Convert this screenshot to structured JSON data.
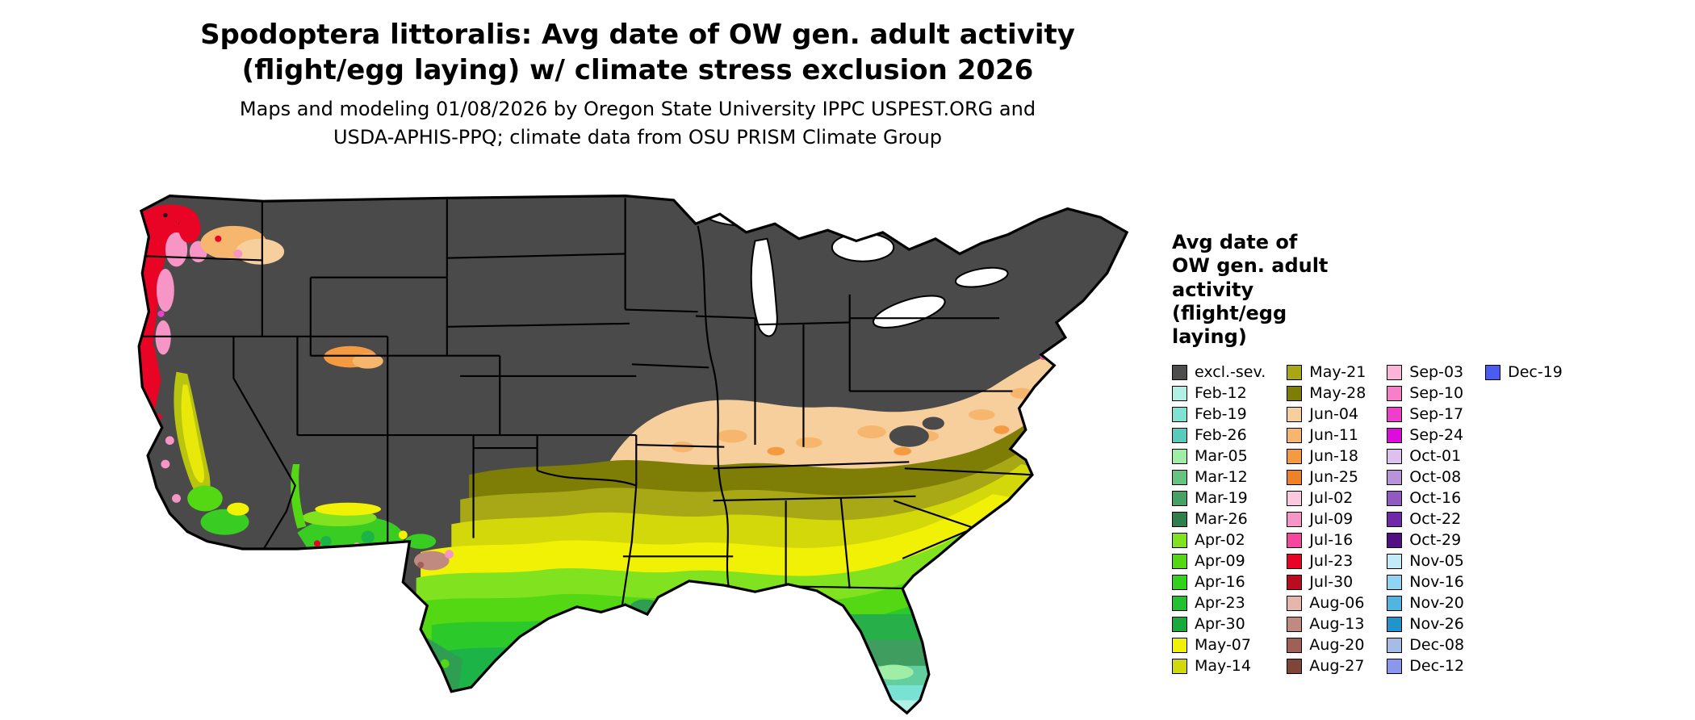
{
  "title": {
    "lines": [
      "Spodoptera littoralis: Avg date of OW gen. adult activity",
      "(flight/egg laying) w/ climate stress exclusion 2026"
    ]
  },
  "subtitle": {
    "lines": [
      "Maps and modeling 01/08/2026 by Oregon State University IPPC USPEST.ORG and",
      "USDA-APHIS-PPQ; climate data from OSU PRISM Climate Group"
    ]
  },
  "legend": {
    "title_lines": [
      "Avg date of",
      "OW gen. adult",
      "activity",
      "(flight/egg",
      "laying)"
    ],
    "columns": [
      [
        {
          "label": "excl.-sev.",
          "color": "#4d4d4d"
        },
        {
          "label": "Feb-12",
          "color": "#b2f0e6"
        },
        {
          "label": "Feb-19",
          "color": "#7fe3d2"
        },
        {
          "label": "Feb-26",
          "color": "#59cbbd"
        },
        {
          "label": "Mar-05",
          "color": "#a0eda6"
        },
        {
          "label": "Mar-12",
          "color": "#67c47e"
        },
        {
          "label": "Mar-19",
          "color": "#46a163"
        },
        {
          "label": "Mar-26",
          "color": "#2f7f4c"
        },
        {
          "label": "Apr-02",
          "color": "#81e31f"
        },
        {
          "label": "Apr-09",
          "color": "#55d814"
        },
        {
          "label": "Apr-16",
          "color": "#33d01c"
        },
        {
          "label": "Apr-23",
          "color": "#21c12f"
        },
        {
          "label": "Apr-30",
          "color": "#18aa3d"
        },
        {
          "label": "May-07",
          "color": "#f1f105"
        },
        {
          "label": "May-14",
          "color": "#d3d80a"
        }
      ],
      [
        {
          "label": "May-21",
          "color": "#a8a816"
        },
        {
          "label": "May-28",
          "color": "#7e7d05"
        },
        {
          "label": "Jun-04",
          "color": "#f6cf9d"
        },
        {
          "label": "Jun-11",
          "color": "#f6b66d"
        },
        {
          "label": "Jun-18",
          "color": "#f49b41"
        },
        {
          "label": "Jun-25",
          "color": "#ee8227"
        },
        {
          "label": "Jul-02",
          "color": "#fac9df"
        },
        {
          "label": "Jul-09",
          "color": "#f795c7"
        },
        {
          "label": "Jul-16",
          "color": "#f4479d"
        },
        {
          "label": "Jul-23",
          "color": "#e90426"
        },
        {
          "label": "Jul-30",
          "color": "#bb0b1e"
        },
        {
          "label": "Aug-06",
          "color": "#e5b6ab"
        },
        {
          "label": "Aug-13",
          "color": "#c18a80"
        },
        {
          "label": "Aug-20",
          "color": "#a06055"
        },
        {
          "label": "Aug-27",
          "color": "#7f4537"
        }
      ],
      [
        {
          "label": "Sep-03",
          "color": "#fab5d9"
        },
        {
          "label": "Sep-10",
          "color": "#f77fc9"
        },
        {
          "label": "Sep-17",
          "color": "#ef3ecb"
        },
        {
          "label": "Sep-24",
          "color": "#dc0ddc"
        },
        {
          "label": "Oct-01",
          "color": "#dcc1ec"
        },
        {
          "label": "Oct-08",
          "color": "#ba92d7"
        },
        {
          "label": "Oct-16",
          "color": "#9458c1"
        },
        {
          "label": "Oct-22",
          "color": "#7029a7"
        },
        {
          "label": "Oct-29",
          "color": "#521183"
        },
        {
          "label": "Nov-05",
          "color": "#c3eaf8"
        },
        {
          "label": "Nov-16",
          "color": "#8fd5f1"
        },
        {
          "label": "Nov-20",
          "color": "#50b5e1"
        },
        {
          "label": "Nov-26",
          "color": "#1f94cd"
        },
        {
          "label": "Dec-08",
          "color": "#a5bde5"
        },
        {
          "label": "Dec-12",
          "color": "#8997ed"
        }
      ],
      [
        {
          "label": "Dec-19",
          "color": "#4a5df1"
        }
      ]
    ]
  }
}
